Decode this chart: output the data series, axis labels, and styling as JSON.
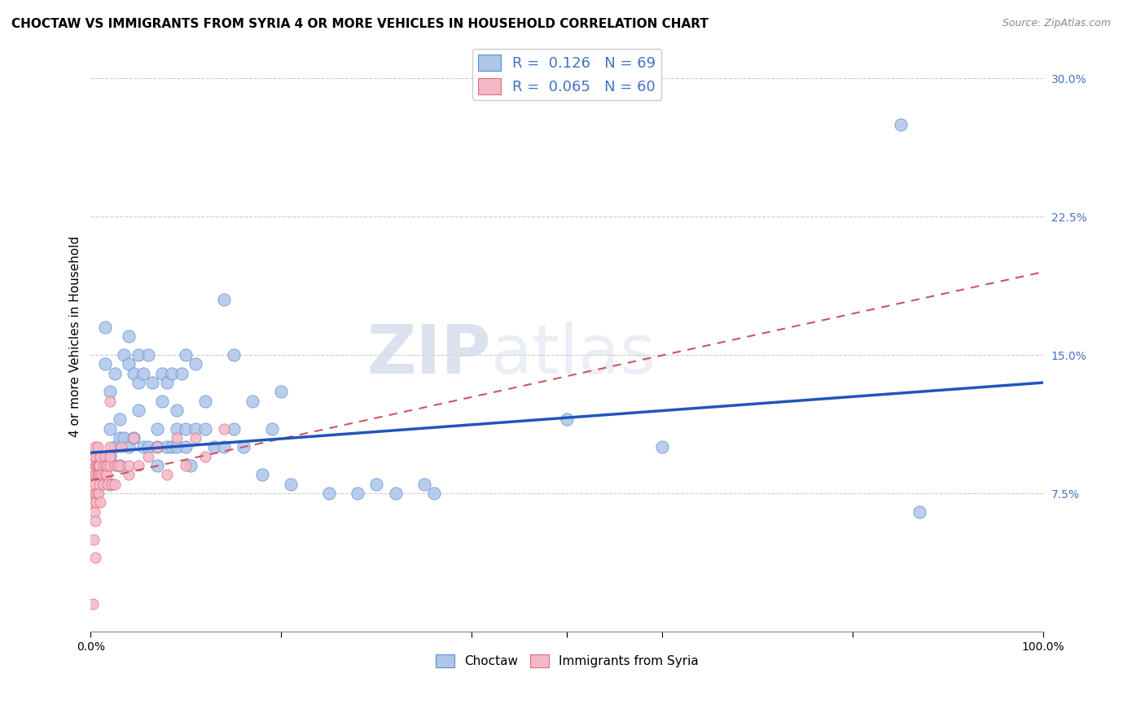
{
  "title": "CHOCTAW VS IMMIGRANTS FROM SYRIA 4 OR MORE VEHICLES IN HOUSEHOLD CORRELATION CHART",
  "source": "Source: ZipAtlas.com",
  "ylabel": "4 or more Vehicles in Household",
  "xlim": [
    0.0,
    1.0
  ],
  "ylim": [
    0.0,
    0.32
  ],
  "yticks": [
    0.0,
    0.075,
    0.15,
    0.225,
    0.3
  ],
  "ytick_labels": [
    "",
    "7.5%",
    "15.0%",
    "22.5%",
    "30.0%"
  ],
  "choctaw_R": 0.126,
  "choctaw_N": 69,
  "syria_R": 0.065,
  "syria_N": 60,
  "choctaw_color": "#aec6e8",
  "syria_color": "#f4b8c8",
  "choctaw_edge_color": "#5b8dd9",
  "syria_edge_color": "#d9707a",
  "choctaw_line_color": "#2255bb",
  "syria_line_color": "#cc5566",
  "legend_label_1": "R =  0.126   N = 69",
  "legend_label_2": "R =  0.065   N = 60",
  "legend_label_bottom_1": "Choctaw",
  "legend_label_bottom_2": "Immigrants from Syria",
  "choctaw_x": [
    0.01,
    0.015,
    0.015,
    0.02,
    0.02,
    0.02,
    0.02,
    0.025,
    0.025,
    0.03,
    0.03,
    0.03,
    0.035,
    0.035,
    0.04,
    0.04,
    0.04,
    0.045,
    0.045,
    0.05,
    0.05,
    0.05,
    0.055,
    0.055,
    0.06,
    0.06,
    0.065,
    0.07,
    0.07,
    0.07,
    0.075,
    0.075,
    0.08,
    0.08,
    0.085,
    0.085,
    0.09,
    0.09,
    0.09,
    0.095,
    0.1,
    0.1,
    0.1,
    0.105,
    0.11,
    0.11,
    0.12,
    0.12,
    0.13,
    0.14,
    0.14,
    0.15,
    0.15,
    0.16,
    0.17,
    0.18,
    0.19,
    0.2,
    0.21,
    0.25,
    0.28,
    0.3,
    0.32,
    0.35,
    0.36,
    0.5,
    0.6,
    0.85,
    0.87
  ],
  "choctaw_y": [
    0.095,
    0.145,
    0.165,
    0.08,
    0.095,
    0.11,
    0.13,
    0.1,
    0.14,
    0.09,
    0.105,
    0.115,
    0.105,
    0.15,
    0.1,
    0.145,
    0.16,
    0.105,
    0.14,
    0.12,
    0.135,
    0.15,
    0.1,
    0.14,
    0.1,
    0.15,
    0.135,
    0.09,
    0.1,
    0.11,
    0.125,
    0.14,
    0.1,
    0.135,
    0.1,
    0.14,
    0.1,
    0.11,
    0.12,
    0.14,
    0.1,
    0.11,
    0.15,
    0.09,
    0.11,
    0.145,
    0.11,
    0.125,
    0.1,
    0.1,
    0.18,
    0.11,
    0.15,
    0.1,
    0.125,
    0.085,
    0.11,
    0.13,
    0.08,
    0.075,
    0.075,
    0.08,
    0.075,
    0.08,
    0.075,
    0.115,
    0.1,
    0.275,
    0.065
  ],
  "syria_x": [
    0.002,
    0.003,
    0.003,
    0.004,
    0.004,
    0.004,
    0.004,
    0.005,
    0.005,
    0.005,
    0.005,
    0.005,
    0.005,
    0.005,
    0.005,
    0.006,
    0.006,
    0.007,
    0.007,
    0.007,
    0.007,
    0.008,
    0.008,
    0.008,
    0.009,
    0.009,
    0.01,
    0.01,
    0.01,
    0.012,
    0.013,
    0.013,
    0.015,
    0.015,
    0.016,
    0.017,
    0.018,
    0.018,
    0.02,
    0.02,
    0.02,
    0.022,
    0.025,
    0.025,
    0.028,
    0.03,
    0.032,
    0.04,
    0.04,
    0.045,
    0.05,
    0.06,
    0.07,
    0.08,
    0.09,
    0.1,
    0.11,
    0.12,
    0.14,
    0.02
  ],
  "syria_y": [
    0.015,
    0.05,
    0.07,
    0.065,
    0.075,
    0.085,
    0.095,
    0.04,
    0.06,
    0.075,
    0.08,
    0.085,
    0.09,
    0.095,
    0.1,
    0.07,
    0.09,
    0.075,
    0.085,
    0.09,
    0.1,
    0.075,
    0.085,
    0.09,
    0.08,
    0.09,
    0.07,
    0.085,
    0.095,
    0.085,
    0.08,
    0.09,
    0.085,
    0.095,
    0.09,
    0.085,
    0.08,
    0.09,
    0.09,
    0.095,
    0.1,
    0.08,
    0.08,
    0.09,
    0.09,
    0.09,
    0.1,
    0.085,
    0.09,
    0.105,
    0.09,
    0.095,
    0.1,
    0.085,
    0.105,
    0.09,
    0.105,
    0.095,
    0.11,
    0.125
  ],
  "background_color": "#ffffff",
  "grid_color": "#cccccc",
  "watermark_color": "#cdd6e8"
}
